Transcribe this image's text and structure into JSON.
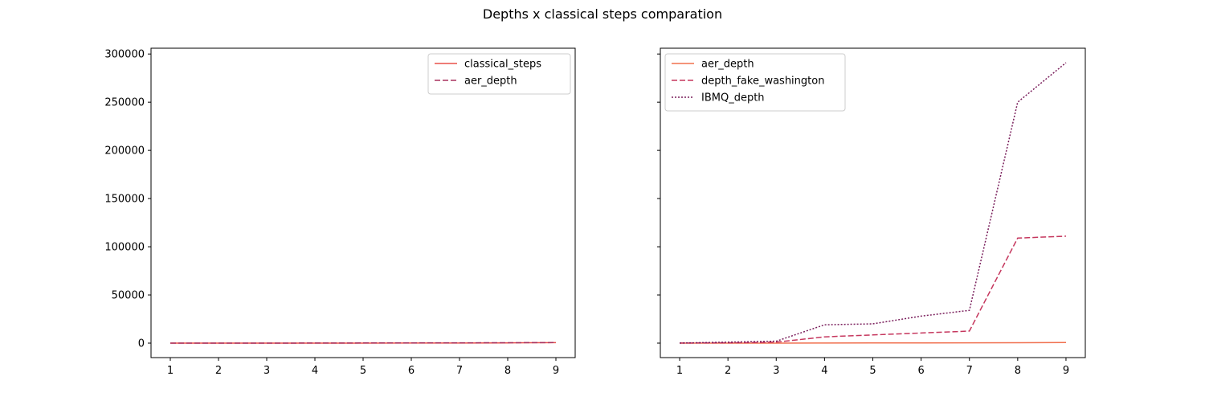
{
  "figure": {
    "title": "Depths x classical steps comparation"
  },
  "chart_data": [
    {
      "type": "line",
      "title": "",
      "xlabel": "",
      "ylabel": "",
      "x": [
        1,
        2,
        3,
        4,
        5,
        6,
        7,
        8,
        9
      ],
      "xlim": [
        0.6,
        9.4
      ],
      "ylim": [
        -15000,
        306000
      ],
      "xticks": [
        "1",
        "2",
        "3",
        "4",
        "5",
        "6",
        "7",
        "8",
        "9"
      ],
      "yticks": [
        "0",
        "50000",
        "100000",
        "150000",
        "200000",
        "250000",
        "300000"
      ],
      "legend_position": "upper right",
      "grid": false,
      "series": [
        {
          "name": "classical_steps",
          "style": "solid",
          "color": "#e8514a",
          "values": [
            1,
            3,
            7,
            15,
            31,
            63,
            127,
            255,
            511
          ]
        },
        {
          "name": "aer_depth",
          "style": "dashed",
          "color": "#a8325e",
          "values": [
            3,
            12,
            40,
            90,
            150,
            230,
            320,
            430,
            560
          ]
        }
      ]
    },
    {
      "type": "line",
      "title": "",
      "xlabel": "",
      "ylabel": "",
      "x": [
        1,
        2,
        3,
        4,
        5,
        6,
        7,
        8,
        9
      ],
      "xlim": [
        0.6,
        9.4
      ],
      "ylim": [
        -15000,
        306000
      ],
      "xticks": [
        "1",
        "2",
        "3",
        "4",
        "5",
        "6",
        "7",
        "8",
        "9"
      ],
      "yticks": [
        "0",
        "50000",
        "100000",
        "150000",
        "200000",
        "250000",
        "300000"
      ],
      "legend_position": "upper left",
      "grid": false,
      "series": [
        {
          "name": "aer_depth",
          "style": "solid",
          "color": "#f0704f",
          "values": [
            3,
            12,
            40,
            90,
            150,
            230,
            320,
            430,
            560
          ]
        },
        {
          "name": "depth_fake_washington",
          "style": "dashed",
          "color": "#c5365d",
          "values": [
            50,
            300,
            1000,
            6500,
            8500,
            10500,
            12500,
            109000,
            111000
          ]
        },
        {
          "name": "IBMQ_depth",
          "style": "dotted",
          "color": "#7a1f5c",
          "values": [
            100,
            1000,
            2000,
            19000,
            20000,
            28000,
            34000,
            250000,
            291000
          ]
        }
      ]
    }
  ]
}
